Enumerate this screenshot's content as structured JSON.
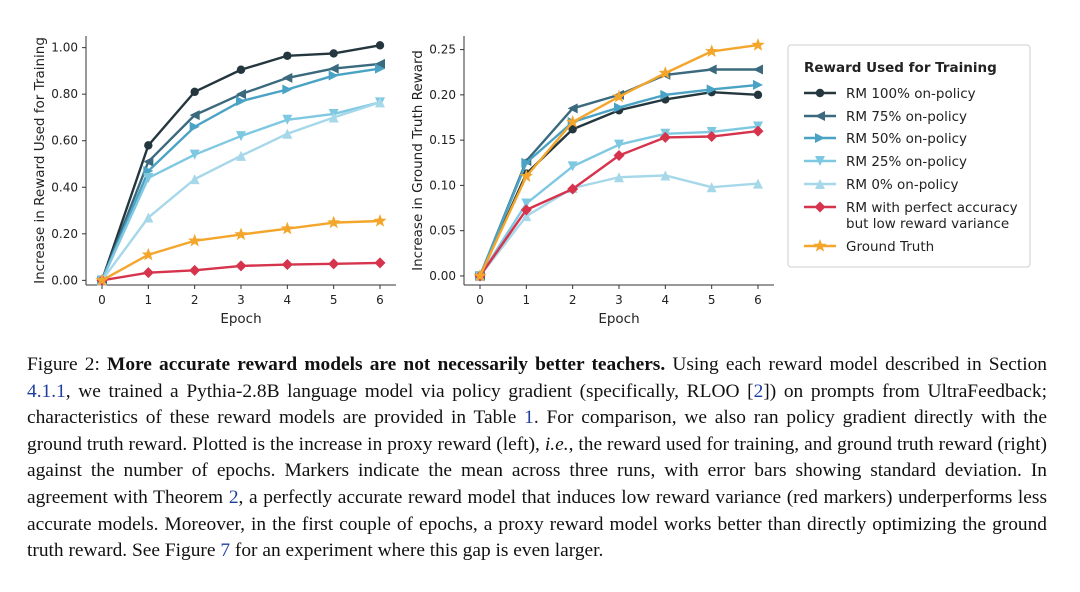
{
  "chart_data": [
    {
      "type": "line",
      "title": "",
      "xlabel": "Epoch",
      "ylabel": "Increase in Reward Used for Training",
      "x": [
        0,
        1,
        2,
        3,
        4,
        5,
        6
      ],
      "xticks": [
        "0",
        "1",
        "2",
        "3",
        "4",
        "5",
        "6"
      ],
      "ylim": [
        -0.02,
        1.05
      ],
      "yticks": [
        "0.00",
        "0.20",
        "0.40",
        "0.60",
        "0.80",
        "1.00"
      ],
      "ytick_values": [
        0,
        0.2,
        0.4,
        0.6,
        0.8,
        1.0
      ],
      "series": [
        {
          "name": "RM 100% on-policy",
          "values": [
            0.0,
            0.58,
            0.81,
            0.905,
            0.965,
            0.975,
            1.01
          ]
        },
        {
          "name": "RM 75% on-policy",
          "values": [
            0.0,
            0.51,
            0.71,
            0.8,
            0.87,
            0.91,
            0.93
          ]
        },
        {
          "name": "RM 50% on-policy",
          "values": [
            0.0,
            0.47,
            0.66,
            0.77,
            0.82,
            0.88,
            0.91
          ]
        },
        {
          "name": "RM 25% on-policy",
          "values": [
            0.0,
            0.44,
            0.54,
            0.62,
            0.69,
            0.715,
            0.765
          ]
        },
        {
          "name": "RM 0% on-policy",
          "values": [
            0.0,
            0.27,
            0.435,
            0.535,
            0.63,
            0.7,
            0.765
          ]
        },
        {
          "name": "RM with perfect accuracy but low reward variance",
          "values": [
            0.0,
            0.033,
            0.043,
            0.062,
            0.068,
            0.071,
            0.075
          ]
        },
        {
          "name": "Ground Truth",
          "values": [
            0.0,
            0.11,
            0.17,
            0.197,
            0.222,
            0.248,
            0.255
          ]
        }
      ]
    },
    {
      "type": "line",
      "title": "",
      "xlabel": "Epoch",
      "ylabel": "Increase in Ground Truth Reward",
      "x": [
        0,
        1,
        2,
        3,
        4,
        5,
        6
      ],
      "xticks": [
        "0",
        "1",
        "2",
        "3",
        "4",
        "5",
        "6"
      ],
      "ylim": [
        -0.01,
        0.265
      ],
      "yticks": [
        "0.00",
        "0.05",
        "0.10",
        "0.15",
        "0.20",
        "0.25"
      ],
      "ytick_values": [
        0,
        0.05,
        0.1,
        0.15,
        0.2,
        0.25
      ],
      "series": [
        {
          "name": "RM 100% on-policy",
          "values": [
            0.0,
            0.113,
            0.162,
            0.183,
            0.195,
            0.203,
            0.2
          ]
        },
        {
          "name": "RM 75% on-policy",
          "values": [
            0.0,
            0.127,
            0.185,
            0.2,
            0.222,
            0.228,
            0.228
          ]
        },
        {
          "name": "RM 50% on-policy",
          "values": [
            0.0,
            0.125,
            0.17,
            0.186,
            0.2,
            0.206,
            0.211
          ]
        },
        {
          "name": "RM 25% on-policy",
          "values": [
            0.0,
            0.08,
            0.121,
            0.145,
            0.157,
            0.159,
            0.165
          ]
        },
        {
          "name": "RM 0% on-policy",
          "values": [
            0.0,
            0.066,
            0.097,
            0.109,
            0.111,
            0.098,
            0.102
          ]
        },
        {
          "name": "RM with perfect accuracy but low reward variance",
          "values": [
            0.0,
            0.073,
            0.096,
            0.133,
            0.153,
            0.154,
            0.16
          ]
        },
        {
          "name": "Ground Truth",
          "values": [
            0.0,
            0.11,
            0.17,
            0.198,
            0.224,
            0.248,
            0.255
          ]
        }
      ]
    }
  ],
  "legend": {
    "title": "Reward Used for Training",
    "items": [
      {
        "lines": [
          "RM 100% on-policy"
        ],
        "color": "#24373e",
        "marker": "circle"
      },
      {
        "lines": [
          "RM 75% on-policy"
        ],
        "color": "#3b6a7e",
        "marker": "tri-left"
      },
      {
        "lines": [
          "RM 50% on-policy"
        ],
        "color": "#4aa3c4",
        "marker": "tri-right"
      },
      {
        "lines": [
          "RM 25% on-policy"
        ],
        "color": "#7fc8e2",
        "marker": "tri-down"
      },
      {
        "lines": [
          "RM 0% on-policy"
        ],
        "color": "#a6d8ea",
        "marker": "tri-up"
      },
      {
        "lines": [
          "RM with perfect accuracy",
          "but low reward variance"
        ],
        "color": "#d6334d",
        "marker": "diamond"
      },
      {
        "lines": [
          "Ground Truth"
        ],
        "color": "#f3a62b",
        "marker": "star"
      }
    ]
  },
  "caption": {
    "label": "Figure 2:",
    "lead": "More accurate reward models are not necessarily better teachers.",
    "s1": "Using each reward model described in Section",
    "ref_section": "4.1.1",
    "s2": ", we trained a Pythia-2.8B language model via policy gradient (specifically, RLOO [",
    "ref_cite": "2",
    "s3": "]) on prompts from UltraFeedback; characteristics of these reward models are provided in Table",
    "ref_table": "1",
    "s4": ". For comparison, we also ran policy gradient directly with the ground truth reward. Plotted is the increase in proxy reward (left),",
    "ie": "i.e.",
    "s5": ", the reward used for training, and ground truth reward (right) against the number of epochs. Markers indicate the mean across three runs, with error bars showing standard deviation. In agreement with Theorem",
    "ref_theorem": "2",
    "s6": ", a perfectly accurate reward model that induces low reward variance (red markers) underperforms less accurate models. Moreover, in the first couple of epochs, a proxy reward model works better than directly optimizing the ground truth reward. See Figure",
    "ref_figure": "7",
    "s7": "for an experiment where this gap is even larger."
  }
}
